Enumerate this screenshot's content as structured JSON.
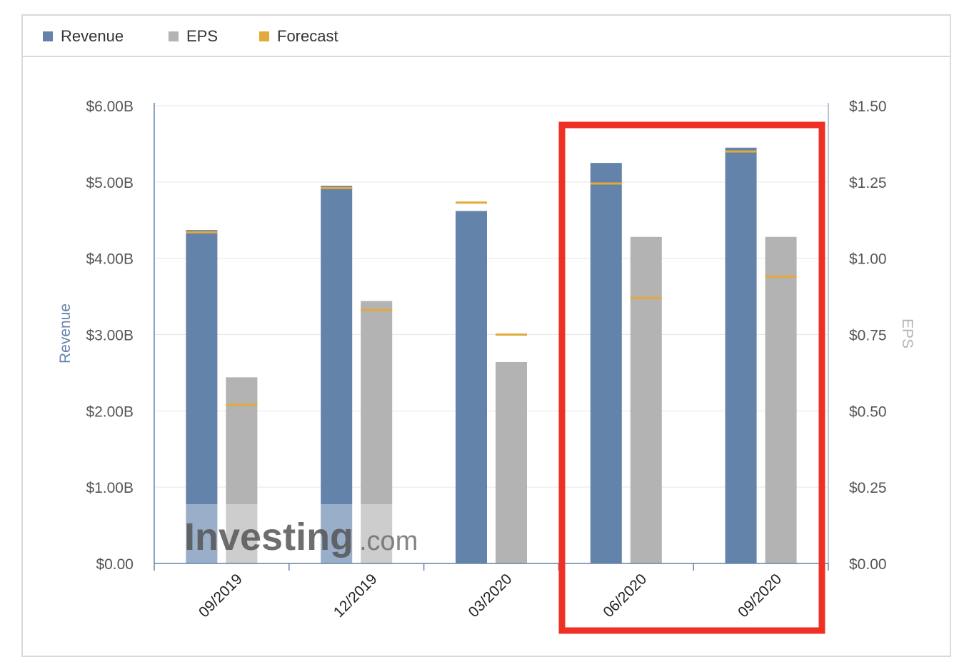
{
  "legend": {
    "items": [
      {
        "label": "Revenue",
        "color": "#6383ab"
      },
      {
        "label": "EPS",
        "color": "#b3b3b3"
      },
      {
        "label": "Forecast",
        "color": "#e3a93b"
      }
    ]
  },
  "watermark": {
    "brand": "Investing",
    "suffix": ".com"
  },
  "chart_data": {
    "type": "bar",
    "categories": [
      "09/2019",
      "12/2019",
      "03/2020",
      "06/2020",
      "09/2020"
    ],
    "series": [
      {
        "name": "Revenue",
        "axis": "left",
        "values": [
          4.37,
          4.95,
          4.62,
          5.25,
          5.45
        ],
        "color": "#6383ab"
      },
      {
        "name": "EPS",
        "axis": "right",
        "values": [
          0.61,
          0.86,
          0.66,
          1.07,
          1.07
        ],
        "color": "#b3b3b3"
      }
    ],
    "forecast": {
      "name": "Forecast",
      "color": "#e3a93b",
      "revenue": [
        4.34,
        4.92,
        4.73,
        4.98,
        5.4
      ],
      "eps": [
        0.52,
        0.83,
        0.75,
        0.87,
        0.94
      ]
    },
    "left_axis": {
      "label": "Revenue",
      "range": [
        0,
        6
      ],
      "ticks": [
        "$0.00",
        "$1.00B",
        "$2.00B",
        "$3.00B",
        "$4.00B",
        "$5.00B",
        "$6.00B"
      ]
    },
    "right_axis": {
      "label": "EPS",
      "range": [
        0,
        1.5
      ],
      "ticks": [
        "$0.00",
        "$0.25",
        "$0.50",
        "$0.75",
        "$1.00",
        "$1.25",
        "$1.50"
      ]
    },
    "grid": true,
    "legend_position": "top-left",
    "highlight": {
      "categories": [
        "06/2020",
        "09/2020"
      ],
      "color": "#ee3124"
    }
  }
}
